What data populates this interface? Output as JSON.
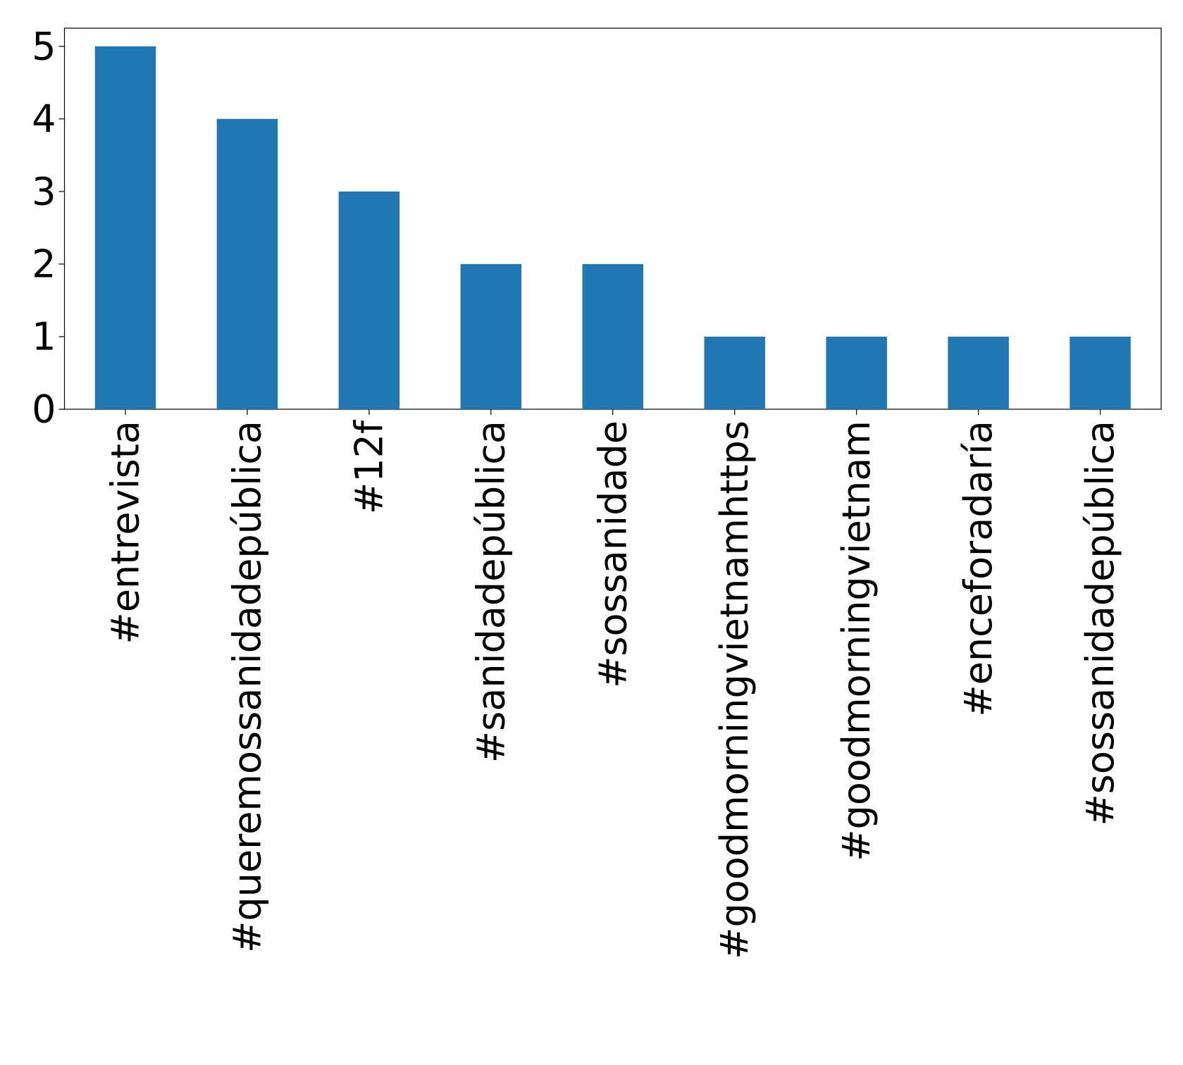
{
  "chart_data": {
    "type": "bar",
    "categories": [
      "#entrevista",
      "#queremossanidadepública",
      "#12f",
      "#sanidadepública",
      "#sossanidade",
      "#goodmorningvietnamhttps",
      "#goodmorningvietnam",
      "#enceforadaría",
      "#sossanidadepública"
    ],
    "values": [
      5,
      4,
      3,
      2,
      2,
      1,
      1,
      1,
      1
    ],
    "color": "#1f77b4",
    "ylim": [
      0,
      5.25
    ],
    "yticks": [
      0,
      1,
      2,
      3,
      4,
      5
    ],
    "grid": false
  }
}
